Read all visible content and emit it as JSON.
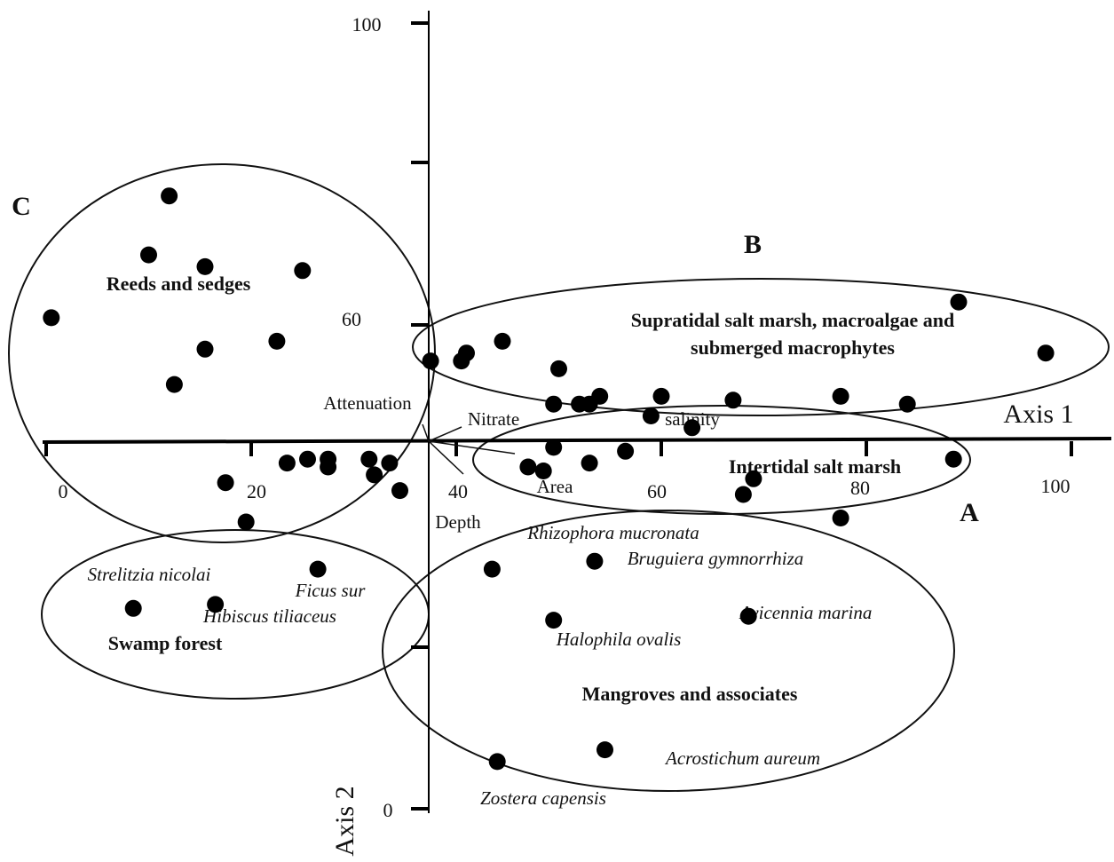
{
  "chart_data": {
    "type": "scatter",
    "title": "",
    "xlabel": "Axis 1",
    "ylabel": "Axis 2",
    "x_tick_labels": [
      "0",
      "20",
      "40",
      "60",
      "80",
      "100"
    ],
    "y_tick_labels": [
      "0",
      "100"
    ],
    "xlim": [
      0,
      100
    ],
    "ylim": [
      0,
      100
    ],
    "grid": false,
    "legend": "none",
    "groups": [
      {
        "letter": "",
        "label": "Reeds and sedges"
      },
      {
        "letter": "B",
        "label": "Supratidal salt marsh, macroalgae and submerged macrophytes"
      },
      {
        "letter": "A",
        "label": "Intertidal salt marsh"
      },
      {
        "letter": "",
        "label": "Swamp forest"
      },
      {
        "letter": "",
        "label": "Mangroves and associates"
      },
      {
        "letter": "C",
        "label": ""
      }
    ],
    "species_labels": [
      "Strelitzia nicolai",
      "Hibiscus tiliaceus",
      "Ficus sur",
      "Rhizophora mucronata",
      "Bruguiera gymnorrhiza",
      "Avicennia marina",
      "Halophila ovalis",
      "Acrostichum aureum",
      "Zostera capensis"
    ],
    "environmental_vectors": [
      "Attenuation",
      "Nitrate",
      "salinity",
      "Area",
      "Depth"
    ],
    "stray_labels": [
      "60"
    ],
    "points": [
      {
        "x": 12.0,
        "y": 78.0
      },
      {
        "x": 10.0,
        "y": 70.5
      },
      {
        "x": 15.5,
        "y": 69.0
      },
      {
        "x": 25.0,
        "y": 68.5
      },
      {
        "x": 0.5,
        "y": 62.5
      },
      {
        "x": 15.5,
        "y": 58.5
      },
      {
        "x": 12.5,
        "y": 54.0
      },
      {
        "x": 22.5,
        "y": 59.5
      },
      {
        "x": 44.5,
        "y": 59.5
      },
      {
        "x": 41.0,
        "y": 58.0
      },
      {
        "x": 37.5,
        "y": 57.0
      },
      {
        "x": 40.5,
        "y": 57.0
      },
      {
        "x": 50.0,
        "y": 56.0
      },
      {
        "x": 89.0,
        "y": 64.5
      },
      {
        "x": 97.5,
        "y": 58.0
      },
      {
        "x": 49.5,
        "y": 51.5
      },
      {
        "x": 52.0,
        "y": 51.5
      },
      {
        "x": 53.0,
        "y": 51.5
      },
      {
        "x": 54.0,
        "y": 52.5
      },
      {
        "x": 60.0,
        "y": 52.5
      },
      {
        "x": 67.0,
        "y": 52.0
      },
      {
        "x": 77.5,
        "y": 52.5
      },
      {
        "x": 84.0,
        "y": 51.5
      },
      {
        "x": 59.0,
        "y": 50.0
      },
      {
        "x": 63.0,
        "y": 48.5
      },
      {
        "x": 49.5,
        "y": 46.0
      },
      {
        "x": 56.5,
        "y": 45.5
      },
      {
        "x": 88.5,
        "y": 44.5
      },
      {
        "x": 47.0,
        "y": 43.5
      },
      {
        "x": 48.5,
        "y": 43.0
      },
      {
        "x": 53.0,
        "y": 44.0
      },
      {
        "x": 69.0,
        "y": 42.0
      },
      {
        "x": 68.0,
        "y": 40.0
      },
      {
        "x": 77.5,
        "y": 37.0
      },
      {
        "x": 27.5,
        "y": 44.5
      },
      {
        "x": 31.5,
        "y": 44.5
      },
      {
        "x": 23.5,
        "y": 44.0
      },
      {
        "x": 25.5,
        "y": 44.5
      },
      {
        "x": 33.5,
        "y": 44.0
      },
      {
        "x": 27.5,
        "y": 43.5
      },
      {
        "x": 32.0,
        "y": 42.5
      },
      {
        "x": 17.5,
        "y": 41.5
      },
      {
        "x": 34.5,
        "y": 40.5
      },
      {
        "x": 19.5,
        "y": 36.5
      },
      {
        "x": 26.5,
        "y": 30.5
      },
      {
        "x": 43.5,
        "y": 30.5
      },
      {
        "x": 53.5,
        "y": 31.5
      },
      {
        "x": 8.5,
        "y": 25.5
      },
      {
        "x": 16.5,
        "y": 26.0
      },
      {
        "x": 49.5,
        "y": 24.0
      },
      {
        "x": 68.5,
        "y": 24.5
      },
      {
        "x": 54.5,
        "y": 7.5
      },
      {
        "x": 44.0,
        "y": 6.0
      }
    ]
  }
}
